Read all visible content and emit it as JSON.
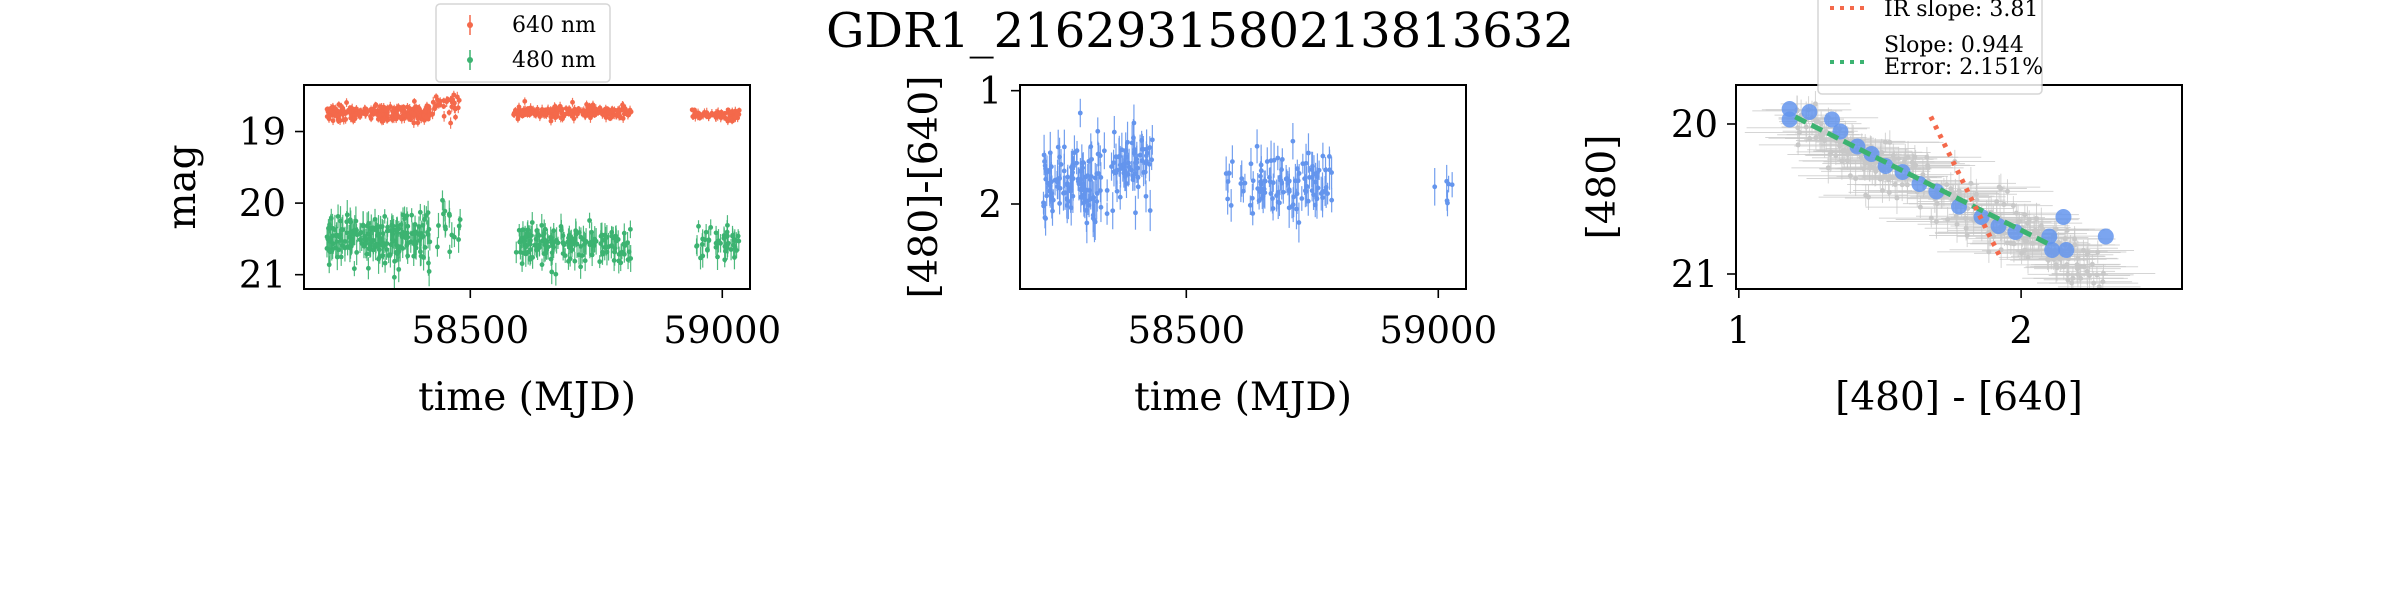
{
  "figure": {
    "title": "GDR1_2162931580213813632"
  },
  "colors": {
    "r_band": "#f4694b",
    "g_band": "#3cb371",
    "color_index": "#6495ed",
    "errorbar_gray": "#c8c8c8",
    "ir_slope_line": "#f4694b",
    "fit_line": "#3cb371"
  },
  "chart_data": [
    {
      "type": "scatter",
      "name": "light-curve",
      "xlabel": "time (MJD)",
      "ylabel": "mag",
      "xlim": [
        58170,
        59055
      ],
      "ylim": [
        21.2,
        18.35
      ],
      "y_inverted": true,
      "xticks": [
        58500,
        59000
      ],
      "yticks": [
        19,
        20,
        21
      ],
      "legend_position": "upper-center-outside",
      "legend": [
        {
          "label": "640 nm",
          "color": "#f4694b"
        },
        {
          "label": "480 nm",
          "color": "#3cb371"
        }
      ],
      "series": [
        {
          "name": "640 nm",
          "segments": [
            {
              "x_range": [
                58215,
                58420
              ],
              "y_center": 18.74,
              "y_spread": 0.09,
              "count": 260,
              "yerr": 0.05
            },
            {
              "x_range": [
                58425,
                58480
              ],
              "y_center": 18.66,
              "y_spread": 0.14,
              "count": 30,
              "yerr": 0.06
            },
            {
              "x_range": [
                58585,
                58820
              ],
              "y_center": 18.73,
              "y_spread": 0.07,
              "count": 210,
              "yerr": 0.05
            },
            {
              "x_range": [
                58940,
                59035
              ],
              "y_center": 18.77,
              "y_spread": 0.06,
              "count": 70,
              "yerr": 0.05
            }
          ]
        },
        {
          "name": "480 nm",
          "segments": [
            {
              "x_range": [
                58215,
                58420
              ],
              "y_center": 20.5,
              "y_spread": 0.3,
              "count": 200,
              "yerr": 0.15
            },
            {
              "x_range": [
                58430,
                58480
              ],
              "y_center": 20.35,
              "y_spread": 0.3,
              "count": 15,
              "yerr": 0.15
            },
            {
              "x_range": [
                58590,
                58820
              ],
              "y_center": 20.55,
              "y_spread": 0.22,
              "count": 160,
              "yerr": 0.14
            },
            {
              "x_range": [
                58945,
                59035
              ],
              "y_center": 20.55,
              "y_spread": 0.2,
              "count": 45,
              "yerr": 0.14
            }
          ]
        }
      ]
    },
    {
      "type": "scatter",
      "name": "color-curve",
      "xlabel": "time (MJD)",
      "ylabel": "[480]-[640]",
      "xlim": [
        58170,
        59055
      ],
      "ylim": [
        2.75,
        0.95
      ],
      "y_inverted": true,
      "xticks": [
        58500,
        59000
      ],
      "yticks": [
        1,
        2
      ],
      "series": [
        {
          "name": "",
          "segments": [
            {
              "x_range": [
                58215,
                58330
              ],
              "y_center": 1.8,
              "y_spread": 0.3,
              "count": 110,
              "yerr": 0.14
            },
            {
              "x_range": [
                58330,
                58440
              ],
              "y_center": 1.7,
              "y_spread": 0.25,
              "count": 70,
              "yerr": 0.13
            },
            {
              "x_range": [
                58570,
                58640
              ],
              "y_center": 1.85,
              "y_spread": 0.2,
              "count": 15,
              "yerr": 0.12
            },
            {
              "x_range": [
                58640,
                58790
              ],
              "y_center": 1.8,
              "y_spread": 0.22,
              "count": 90,
              "yerr": 0.13
            },
            {
              "x_range": [
                58990,
                59030
              ],
              "y_center": 1.9,
              "y_spread": 0.12,
              "count": 6,
              "yerr": 0.12
            }
          ]
        }
      ]
    },
    {
      "type": "scatter",
      "name": "color-magnitude",
      "xlabel": "[480] - [640]",
      "ylabel": "[480]",
      "xlim": [
        0.99,
        2.57
      ],
      "ylim": [
        21.1,
        19.74
      ],
      "y_inverted": true,
      "xticks": [
        1,
        2
      ],
      "yticks": [
        20,
        21
      ],
      "legend_position": "upper-left-outside",
      "legend": [
        {
          "label": "IR slope: 3.81",
          "style": "dotted",
          "color": "#f4694b"
        },
        {
          "label": "Slope: 0.944\nError: 2.151%",
          "style": "dotted",
          "color": "#3cb371"
        }
      ],
      "binned_points": [
        {
          "x": 1.18,
          "y": 19.9
        },
        {
          "x": 1.25,
          "y": 19.92
        },
        {
          "x": 1.18,
          "y": 19.97
        },
        {
          "x": 1.33,
          "y": 19.97
        },
        {
          "x": 1.36,
          "y": 20.05
        },
        {
          "x": 1.42,
          "y": 20.15
        },
        {
          "x": 1.47,
          "y": 20.2
        },
        {
          "x": 1.52,
          "y": 20.28
        },
        {
          "x": 1.58,
          "y": 20.32
        },
        {
          "x": 1.64,
          "y": 20.4
        },
        {
          "x": 1.7,
          "y": 20.45
        },
        {
          "x": 1.78,
          "y": 20.55
        },
        {
          "x": 1.86,
          "y": 20.62
        },
        {
          "x": 1.92,
          "y": 20.68
        },
        {
          "x": 1.98,
          "y": 20.72
        },
        {
          "x": 2.1,
          "y": 20.75
        },
        {
          "x": 2.15,
          "y": 20.62
        },
        {
          "x": 2.11,
          "y": 20.84
        },
        {
          "x": 2.16,
          "y": 20.84
        },
        {
          "x": 2.3,
          "y": 20.75
        }
      ],
      "cloud": {
        "x_range": [
          1.2,
          2.3
        ],
        "slope": 0.944,
        "intercept": 18.85,
        "spread": 0.09,
        "count": 260,
        "xerr": 0.14,
        "yerr": 0.09
      },
      "fit_line": {
        "x": [
          1.2,
          2.1
        ],
        "slope": 0.944,
        "intercept": 18.82
      },
      "ir_line": {
        "x": [
          1.68,
          1.93
        ],
        "slope": 3.81,
        "intercept": 13.55
      }
    }
  ]
}
